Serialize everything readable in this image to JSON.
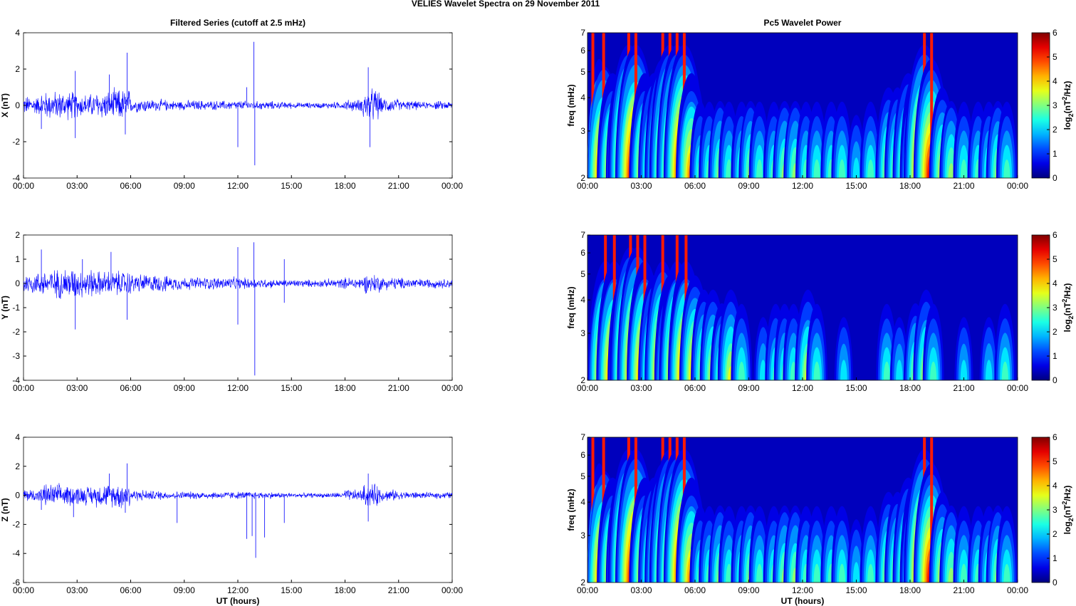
{
  "chart_data": {
    "type": "line+heatmap",
    "title": "VELIES Wavelet Spectra on 29 November  2011",
    "left_title": "Filtered Series (cutoff at 2.5 mHz)",
    "right_title": "Pc5 Wavelet Power",
    "xlabel": "UT (hours)",
    "xticks": [
      "00:00",
      "03:00",
      "06:00",
      "09:00",
      "12:00",
      "15:00",
      "18:00",
      "21:00",
      "00:00"
    ],
    "xlim": [
      0,
      24
    ],
    "freq_label": "freq (mHz)",
    "freq_ticks": [
      2,
      3,
      4,
      5,
      6,
      7
    ],
    "freq_lim": [
      2,
      7
    ],
    "colorbar": {
      "label": "log2(nT^2/Hz)",
      "label_main": "log",
      "label_sub": "2",
      "label_rest1": "(nT",
      "label_sup": "2",
      "label_rest2": "/Hz)",
      "ticks": [
        0,
        1,
        2,
        3,
        4,
        5,
        6
      ],
      "range": [
        0,
        6
      ],
      "colormap": "jet"
    },
    "panels": [
      {
        "name": "X",
        "ylabel": "X (nT)",
        "ylim": [
          -4,
          4
        ],
        "yticks": [
          -4,
          -2,
          0,
          2,
          4
        ],
        "activity": [
          0.4,
          0.6,
          0.6,
          0.5,
          0.6,
          0.7,
          0.3,
          0.25,
          0.2,
          0.22,
          0.2,
          0.2,
          0.2,
          0.18,
          0.15,
          0.12,
          0.12,
          0.15,
          0.25,
          0.7,
          0.3,
          0.2,
          0.15,
          0.18
        ],
        "spikes": [
          [
            1.0,
            -1.3
          ],
          [
            2.9,
            1.9
          ],
          [
            2.9,
            -1.8
          ],
          [
            4.8,
            1.7
          ],
          [
            5.8,
            2.9
          ],
          [
            5.7,
            -1.6
          ],
          [
            12.0,
            -2.3
          ],
          [
            12.5,
            1.0
          ],
          [
            12.9,
            3.5
          ],
          [
            12.95,
            -3.3
          ],
          [
            19.3,
            2.1
          ],
          [
            19.4,
            -2.3
          ]
        ],
        "bursts": [
          [
            0.3,
            5
          ],
          [
            0.9,
            5
          ],
          [
            1.4,
            4
          ],
          [
            1.9,
            4
          ],
          [
            2.3,
            6
          ],
          [
            2.7,
            6
          ],
          [
            3.2,
            4
          ],
          [
            3.7,
            4
          ],
          [
            4.2,
            5
          ],
          [
            4.6,
            6
          ],
          [
            5.0,
            6
          ],
          [
            5.4,
            6
          ],
          [
            5.8,
            4
          ],
          [
            6.3,
            2
          ],
          [
            6.8,
            2
          ],
          [
            7.4,
            2.5
          ],
          [
            7.9,
            2
          ],
          [
            8.6,
            2
          ],
          [
            9.1,
            2.5
          ],
          [
            9.6,
            2
          ],
          [
            10.4,
            2
          ],
          [
            11.0,
            2.5
          ],
          [
            11.6,
            2.5
          ],
          [
            12.2,
            2
          ],
          [
            12.8,
            2
          ],
          [
            13.6,
            2
          ],
          [
            14.2,
            2
          ],
          [
            15.0,
            1.5
          ],
          [
            15.8,
            2
          ],
          [
            16.8,
            3
          ],
          [
            17.3,
            3
          ],
          [
            17.9,
            4
          ],
          [
            18.3,
            4
          ],
          [
            18.8,
            6
          ],
          [
            19.2,
            5
          ],
          [
            19.8,
            3
          ],
          [
            20.3,
            2.5
          ],
          [
            21.0,
            2
          ],
          [
            21.8,
            2
          ],
          [
            22.4,
            2
          ],
          [
            22.9,
            2.5
          ],
          [
            23.4,
            2
          ]
        ]
      },
      {
        "name": "Y",
        "ylabel": "Y (nT)",
        "ylim": [
          -4,
          2
        ],
        "yticks": [
          -4,
          -3,
          -2,
          -1,
          0,
          1,
          2
        ],
        "activity": [
          0.35,
          0.45,
          0.5,
          0.45,
          0.4,
          0.4,
          0.3,
          0.28,
          0.22,
          0.2,
          0.2,
          0.2,
          0.18,
          0.15,
          0.12,
          0.12,
          0.12,
          0.15,
          0.2,
          0.3,
          0.2,
          0.18,
          0.15,
          0.15
        ],
        "spikes": [
          [
            1.0,
            1.4
          ],
          [
            2.9,
            -1.9
          ],
          [
            3.3,
            1.0
          ],
          [
            4.9,
            1.3
          ],
          [
            5.8,
            -1.5
          ],
          [
            12.0,
            1.5
          ],
          [
            12.0,
            -1.7
          ],
          [
            12.9,
            1.7
          ],
          [
            12.95,
            -3.8
          ],
          [
            14.6,
            1.0
          ],
          [
            14.6,
            -0.8
          ]
        ],
        "bursts": [
          [
            0.6,
            4
          ],
          [
            1.0,
            5
          ],
          [
            1.5,
            5
          ],
          [
            2.0,
            4
          ],
          [
            2.4,
            6
          ],
          [
            2.8,
            6
          ],
          [
            3.2,
            5
          ],
          [
            3.7,
            4
          ],
          [
            4.2,
            5
          ],
          [
            4.6,
            4
          ],
          [
            5.0,
            5
          ],
          [
            5.5,
            5
          ],
          [
            6.0,
            4
          ],
          [
            6.5,
            3
          ],
          [
            7.0,
            3
          ],
          [
            7.5,
            2.5
          ],
          [
            8.0,
            3
          ],
          [
            8.6,
            2
          ],
          [
            9.8,
            1.5
          ],
          [
            10.5,
            2
          ],
          [
            11.0,
            2
          ],
          [
            11.5,
            2
          ],
          [
            12.3,
            3
          ],
          [
            12.8,
            2
          ],
          [
            14.3,
            1.5
          ],
          [
            16.7,
            2
          ],
          [
            17.4,
            1.5
          ],
          [
            18.3,
            2.5
          ],
          [
            18.9,
            3
          ],
          [
            19.3,
            2
          ],
          [
            21.0,
            1.5
          ],
          [
            22.4,
            1.5
          ],
          [
            23.3,
            2
          ]
        ]
      },
      {
        "name": "Z",
        "ylabel": "Z (nT)",
        "ylim": [
          -6,
          4
        ],
        "yticks": [
          -6,
          -4,
          -2,
          0,
          2,
          4
        ],
        "activity": [
          0.35,
          0.6,
          0.55,
          0.5,
          0.6,
          0.7,
          0.3,
          0.25,
          0.2,
          0.2,
          0.2,
          0.2,
          0.2,
          0.18,
          0.15,
          0.12,
          0.12,
          0.15,
          0.3,
          0.6,
          0.3,
          0.2,
          0.15,
          0.18
        ],
        "spikes": [
          [
            1.0,
            -1.0
          ],
          [
            2.8,
            -1.5
          ],
          [
            4.8,
            1.5
          ],
          [
            5.8,
            2.2
          ],
          [
            5.7,
            -1.2
          ],
          [
            8.6,
            -1.9
          ],
          [
            12.5,
            -3.0
          ],
          [
            12.8,
            -2.8
          ],
          [
            13.0,
            -4.3
          ],
          [
            13.5,
            -2.9
          ],
          [
            14.6,
            -1.9
          ],
          [
            19.3,
            1.5
          ],
          [
            19.3,
            -1.8
          ]
        ],
        "bursts": [
          [
            0.3,
            5
          ],
          [
            0.9,
            5
          ],
          [
            1.4,
            4
          ],
          [
            1.9,
            4
          ],
          [
            2.3,
            6
          ],
          [
            2.7,
            6
          ],
          [
            3.2,
            4
          ],
          [
            3.7,
            4
          ],
          [
            4.2,
            5
          ],
          [
            4.6,
            6
          ],
          [
            5.0,
            6
          ],
          [
            5.4,
            6
          ],
          [
            5.8,
            4
          ],
          [
            6.3,
            2
          ],
          [
            6.8,
            2
          ],
          [
            7.4,
            2.5
          ],
          [
            7.9,
            2
          ],
          [
            8.6,
            2
          ],
          [
            9.1,
            2.5
          ],
          [
            9.6,
            2
          ],
          [
            10.4,
            2
          ],
          [
            11.0,
            2.5
          ],
          [
            11.6,
            2.5
          ],
          [
            12.2,
            2
          ],
          [
            12.8,
            2
          ],
          [
            13.6,
            2
          ],
          [
            14.2,
            2
          ],
          [
            15.0,
            1.5
          ],
          [
            15.8,
            2
          ],
          [
            16.8,
            3
          ],
          [
            17.3,
            3
          ],
          [
            17.9,
            4
          ],
          [
            18.3,
            4
          ],
          [
            18.8,
            6
          ],
          [
            19.2,
            5
          ],
          [
            19.8,
            3
          ],
          [
            20.3,
            2.5
          ],
          [
            21.0,
            2
          ],
          [
            21.8,
            2
          ],
          [
            22.4,
            2
          ],
          [
            22.9,
            2.5
          ],
          [
            23.4,
            2
          ]
        ]
      }
    ]
  }
}
